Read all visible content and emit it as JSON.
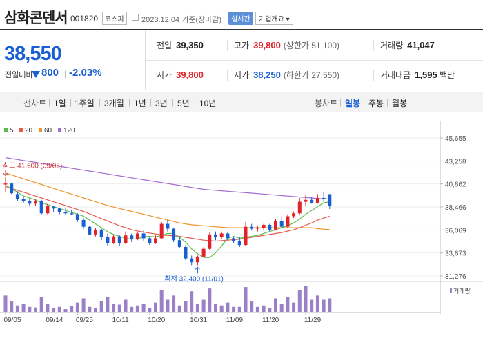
{
  "header": {
    "name": "삼화콘덴서",
    "code": "001820",
    "market": "코스피",
    "date": "2023.12.04",
    "basis": "기준(장마감)",
    "realtime_label": "실시간",
    "company_info_label": "기업개요"
  },
  "quote": {
    "price": "38,550",
    "change_label": "전일대비",
    "change": "800",
    "change_pct": "-2.03%"
  },
  "stats": {
    "prev_close_label": "전일",
    "prev_close": "39,350",
    "high_label": "고가",
    "high": "39,800",
    "upper_limit_label": "(상한가",
    "upper_limit": "51,100)",
    "volume_label": "거래량",
    "volume": "41,047",
    "open_label": "시가",
    "open": "39,800",
    "low_label": "저가",
    "low": "38,250",
    "lower_limit_label": "(하한가",
    "lower_limit": "27,550)",
    "amount_label": "거래대금",
    "amount": "1,595",
    "amount_unit": "백만"
  },
  "tabs": {
    "line_label": "선차트",
    "line_tabs": [
      "1일",
      "1주일",
      "3개월",
      "1년",
      "3년",
      "5년",
      "10년"
    ],
    "candle_label": "봉차트",
    "candle_tabs": [
      "일봉",
      "주봉",
      "월봉"
    ],
    "candle_active": 0
  },
  "colors": {
    "up": "#e0222b",
    "down": "#1a5fd1",
    "ma5": "#5cbc4b",
    "ma20": "#e55c4c",
    "ma60": "#f0932a",
    "ma120": "#a36bd0",
    "volume": "#9b7fc7"
  },
  "chart_data": {
    "type": "candlestick",
    "legend": [
      {
        "name": "5",
        "color": "#5cbc4b"
      },
      {
        "name": "20",
        "color": "#e55c4c"
      },
      {
        "name": "60",
        "color": "#f0932a"
      },
      {
        "name": "120",
        "color": "#a36bd0"
      }
    ],
    "y_ticks": [
      45655,
      43258,
      40862,
      38466,
      36069,
      33673,
      31276
    ],
    "y_tick_labels": [
      "45,655",
      "43,258",
      "40,862",
      "38,466",
      "36,069",
      "33,673",
      "31,276"
    ],
    "ylim": [
      31276,
      45655
    ],
    "x_labels": [
      {
        "i": 0,
        "label": "09/05"
      },
      {
        "i": 7,
        "label": "09/14"
      },
      {
        "i": 12,
        "label": "09/25"
      },
      {
        "i": 18,
        "label": "10/11"
      },
      {
        "i": 24,
        "label": "10/20"
      },
      {
        "i": 31,
        "label": "10/31"
      },
      {
        "i": 37,
        "label": "11/09"
      },
      {
        "i": 43,
        "label": "11/20"
      },
      {
        "i": 50,
        "label": "11/29"
      }
    ],
    "annotations": [
      {
        "text": "최고 41,600 (09/05)",
        "i": 0,
        "value": 41600,
        "position": "above"
      },
      {
        "text": "최저 32,400 (11/01)",
        "i": 32,
        "value": 32400,
        "position": "below"
      }
    ],
    "volume_label": "거래량",
    "candles": [
      {
        "o": 40800,
        "h": 41600,
        "l": 40000,
        "c": 40900
      },
      {
        "o": 40900,
        "h": 41000,
        "l": 39800,
        "c": 39900
      },
      {
        "o": 39800,
        "h": 40100,
        "l": 39100,
        "c": 39300
      },
      {
        "o": 39300,
        "h": 39500,
        "l": 38900,
        "c": 39100
      },
      {
        "o": 39100,
        "h": 39300,
        "l": 38600,
        "c": 38800
      },
      {
        "o": 38800,
        "h": 39300,
        "l": 38600,
        "c": 39100
      },
      {
        "o": 39100,
        "h": 39200,
        "l": 37700,
        "c": 37800
      },
      {
        "o": 37800,
        "h": 38800,
        "l": 37700,
        "c": 38600
      },
      {
        "o": 38500,
        "h": 38600,
        "l": 37900,
        "c": 38300
      },
      {
        "o": 38300,
        "h": 38400,
        "l": 37700,
        "c": 37900
      },
      {
        "o": 37900,
        "h": 38300,
        "l": 37600,
        "c": 37800
      },
      {
        "o": 37800,
        "h": 38200,
        "l": 37600,
        "c": 37700
      },
      {
        "o": 37700,
        "h": 37800,
        "l": 36900,
        "c": 37100
      },
      {
        "o": 37100,
        "h": 37300,
        "l": 36200,
        "c": 36400
      },
      {
        "o": 36400,
        "h": 36500,
        "l": 35500,
        "c": 35600
      },
      {
        "o": 35600,
        "h": 36300,
        "l": 35400,
        "c": 36100
      },
      {
        "o": 36100,
        "h": 36200,
        "l": 35000,
        "c": 35300
      },
      {
        "o": 35300,
        "h": 35700,
        "l": 34400,
        "c": 34700
      },
      {
        "o": 34700,
        "h": 35600,
        "l": 34600,
        "c": 35400
      },
      {
        "o": 35400,
        "h": 35500,
        "l": 34400,
        "c": 34700
      },
      {
        "o": 34700,
        "h": 35900,
        "l": 34600,
        "c": 35500
      },
      {
        "o": 35500,
        "h": 35700,
        "l": 34800,
        "c": 35100
      },
      {
        "o": 35100,
        "h": 35800,
        "l": 35000,
        "c": 35700
      },
      {
        "o": 35700,
        "h": 36000,
        "l": 34900,
        "c": 35200
      },
      {
        "o": 35200,
        "h": 35300,
        "l": 34500,
        "c": 34700
      },
      {
        "o": 34700,
        "h": 35500,
        "l": 34600,
        "c": 35200
      },
      {
        "o": 35200,
        "h": 36900,
        "l": 35100,
        "c": 36700
      },
      {
        "o": 36700,
        "h": 37100,
        "l": 35900,
        "c": 36200
      },
      {
        "o": 36200,
        "h": 36300,
        "l": 34800,
        "c": 35000
      },
      {
        "o": 35000,
        "h": 35400,
        "l": 34200,
        "c": 34300
      },
      {
        "o": 34300,
        "h": 34500,
        "l": 32900,
        "c": 33100
      },
      {
        "o": 33100,
        "h": 33400,
        "l": 32400,
        "c": 32700
      },
      {
        "o": 32700,
        "h": 33400,
        "l": 32400,
        "c": 33300
      },
      {
        "o": 33300,
        "h": 34300,
        "l": 33200,
        "c": 34100
      },
      {
        "o": 34100,
        "h": 35800,
        "l": 34000,
        "c": 35600
      },
      {
        "o": 35600,
        "h": 35900,
        "l": 35000,
        "c": 35300
      },
      {
        "o": 35300,
        "h": 35900,
        "l": 35100,
        "c": 35700
      },
      {
        "o": 35700,
        "h": 35900,
        "l": 35000,
        "c": 35200
      },
      {
        "o": 35200,
        "h": 35400,
        "l": 34700,
        "c": 34900
      },
      {
        "o": 34900,
        "h": 35300,
        "l": 34300,
        "c": 34500
      },
      {
        "o": 34500,
        "h": 36900,
        "l": 34400,
        "c": 36400
      },
      {
        "o": 36400,
        "h": 36700,
        "l": 36000,
        "c": 36200
      },
      {
        "o": 36200,
        "h": 36500,
        "l": 35900,
        "c": 36300
      },
      {
        "o": 36300,
        "h": 36700,
        "l": 36000,
        "c": 36600
      },
      {
        "o": 36600,
        "h": 36700,
        "l": 35900,
        "c": 36100
      },
      {
        "o": 36100,
        "h": 37200,
        "l": 36000,
        "c": 37000
      },
      {
        "o": 37000,
        "h": 37500,
        "l": 36200,
        "c": 36400
      },
      {
        "o": 36400,
        "h": 37700,
        "l": 36300,
        "c": 37500
      },
      {
        "o": 37500,
        "h": 38000,
        "l": 37300,
        "c": 37800
      },
      {
        "o": 37800,
        "h": 39400,
        "l": 37700,
        "c": 39000
      },
      {
        "o": 39000,
        "h": 39700,
        "l": 38600,
        "c": 39200
      },
      {
        "o": 39200,
        "h": 39500,
        "l": 38800,
        "c": 38900
      },
      {
        "o": 38900,
        "h": 39800,
        "l": 38800,
        "c": 39400
      },
      {
        "o": 39400,
        "h": 40000,
        "l": 39000,
        "c": 39350
      },
      {
        "o": 39800,
        "h": 39800,
        "l": 38250,
        "c": 38550
      }
    ],
    "ma5": [
      40700,
      40400,
      40000,
      39600,
      39400,
      39200,
      38900,
      38700,
      38500,
      38300,
      38100,
      37900,
      37700,
      37500,
      37100,
      36700,
      36300,
      35900,
      35600,
      35400,
      35200,
      35100,
      35150,
      35350,
      35400,
      35350,
      35500,
      35700,
      35700,
      35300,
      34800,
      34100,
      33600,
      33200,
      33200,
      33700,
      34400,
      35200,
      35400,
      35200,
      35300,
      35400,
      35500,
      35700,
      35900,
      36100,
      36300,
      36500,
      36800,
      37200,
      37700,
      38100,
      38500,
      38900,
      39000
    ],
    "ma20": [
      40600,
      40400,
      40200,
      40000,
      39800,
      39600,
      39400,
      39200,
      39000,
      38800,
      38600,
      38400,
      38200,
      38000,
      37750,
      37500,
      37250,
      37000,
      36750,
      36500,
      36300,
      36100,
      35950,
      35850,
      35750,
      35650,
      35550,
      35500,
      35450,
      35400,
      35300,
      35200,
      35100,
      35000,
      34950,
      34900,
      34950,
      35000,
      35050,
      35100,
      35200,
      35300,
      35400,
      35500,
      35600,
      35700,
      35800,
      35950,
      36100,
      36300,
      36550,
      36800,
      37100,
      37300,
      37500
    ],
    "ma60": [
      42000,
      41800,
      41600,
      41400,
      41200,
      41000,
      40800,
      40600,
      40400,
      40200,
      40000,
      39800,
      39600,
      39400,
      39200,
      39000,
      38800,
      38600,
      38450,
      38300,
      38150,
      38000,
      37850,
      37700,
      37550,
      37400,
      37250,
      37100,
      36950,
      36800,
      36700,
      36600,
      36550,
      36500,
      36450,
      36400,
      36350,
      36300,
      36300,
      36300,
      36300,
      36300,
      36300,
      36300,
      36300,
      36300,
      36300,
      36300,
      36300,
      36300,
      36300,
      36300,
      36200,
      36150,
      36100
    ],
    "ma120": [
      43600,
      43500,
      43400,
      43300,
      43200,
      43100,
      43000,
      42900,
      42800,
      42700,
      42600,
      42500,
      42400,
      42300,
      42200,
      42100,
      42000,
      41900,
      41800,
      41700,
      41600,
      41500,
      41400,
      41300,
      41200,
      41100,
      41000,
      40900,
      40800,
      40700,
      40600,
      40500,
      40400,
      40300,
      40250,
      40200,
      40150,
      40100,
      40050,
      40000,
      39950,
      39900,
      39850,
      39800,
      39750,
      39700,
      39650,
      39600,
      39550,
      39500,
      39450,
      39400,
      39350,
      39300,
      39300
    ],
    "volume": [
      60,
      40,
      25,
      30,
      20,
      18,
      55,
      30,
      15,
      20,
      12,
      22,
      35,
      50,
      20,
      15,
      40,
      55,
      30,
      28,
      45,
      20,
      25,
      30,
      15,
      35,
      80,
      45,
      60,
      25,
      40,
      75,
      30,
      45,
      85,
      30,
      25,
      35,
      20,
      20,
      90,
      40,
      20,
      25,
      15,
      50,
      30,
      55,
      35,
      80,
      95,
      45,
      60,
      45,
      50
    ]
  }
}
